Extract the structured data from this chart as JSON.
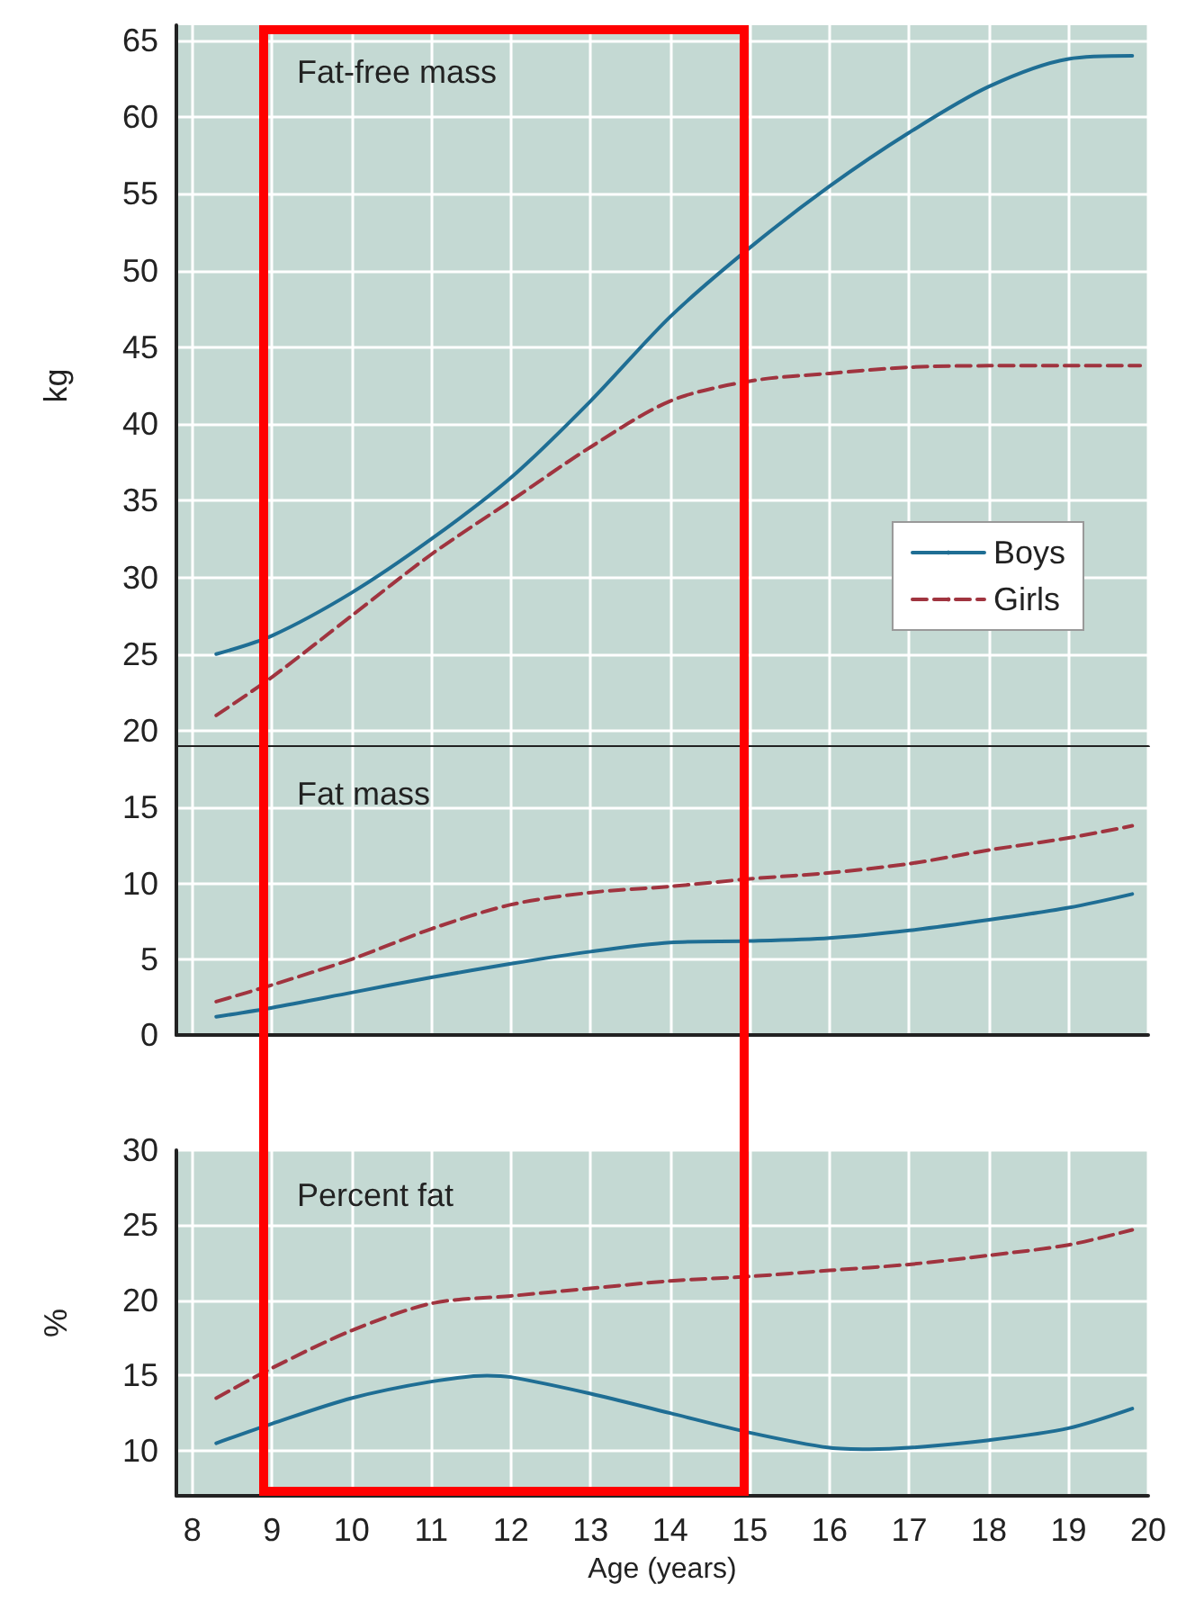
{
  "chart_data": [
    {
      "type": "line",
      "title": "Fat-free mass",
      "ylabel": "kg",
      "xlim": [
        7.8,
        20
      ],
      "xticks": [
        8,
        9,
        10,
        11,
        12,
        13,
        14,
        15,
        16,
        17,
        18,
        19,
        20
      ],
      "ylim": [
        19,
        66
      ],
      "yticks": [
        20,
        25,
        30,
        35,
        40,
        45,
        50,
        55,
        60,
        65
      ],
      "tick_labels": "y",
      "grid": true,
      "legend": "right",
      "marker": "none",
      "series": [
        {
          "name": "Boys",
          "color": "#1f6e94",
          "line_style": "solid",
          "x": [
            8.3,
            9,
            10,
            11,
            12,
            13,
            14,
            15,
            16,
            17,
            18,
            19,
            19.8
          ],
          "values": [
            25,
            26.2,
            29,
            32.5,
            36.5,
            41.5,
            47,
            51.5,
            55.5,
            59,
            62,
            63.8,
            64
          ]
        },
        {
          "name": "Girls",
          "color": "#a0343f",
          "line_style": "dashed",
          "x": [
            8.3,
            9,
            10,
            11,
            12,
            13,
            14,
            15,
            16,
            17,
            18,
            19,
            19.9
          ],
          "values": [
            21,
            23.5,
            27.5,
            31.5,
            35,
            38.5,
            41.5,
            42.8,
            43.3,
            43.7,
            43.8,
            43.8,
            43.8
          ]
        }
      ]
    },
    {
      "type": "line",
      "title": "Fat mass",
      "xlim": [
        7.8,
        20
      ],
      "xticks": [
        8,
        9,
        10,
        11,
        12,
        13,
        14,
        15,
        16,
        17,
        18,
        19,
        20
      ],
      "ylim": [
        0,
        19
      ],
      "yticks": [
        0,
        5,
        10,
        15
      ],
      "tick_labels": "y",
      "grid": true,
      "marker": "none",
      "series": [
        {
          "color": "#1f6e94",
          "line_style": "solid",
          "x": [
            8.3,
            9,
            10,
            11,
            12,
            13,
            14,
            15,
            16,
            17,
            18,
            19,
            19.8
          ],
          "values": [
            1.2,
            1.8,
            2.8,
            3.8,
            4.7,
            5.5,
            6.1,
            6.2,
            6.4,
            6.9,
            7.6,
            8.4,
            9.3
          ]
        },
        {
          "color": "#a0343f",
          "line_style": "dashed",
          "x": [
            8.3,
            9,
            10,
            11,
            12,
            13,
            14,
            15,
            16,
            17,
            18,
            19,
            19.8
          ],
          "values": [
            2.2,
            3.3,
            5,
            7,
            8.6,
            9.4,
            9.8,
            10.3,
            10.7,
            11.3,
            12.2,
            13,
            13.8
          ]
        }
      ]
    },
    {
      "type": "line",
      "title": "Percent fat",
      "xlabel": "Age (years)",
      "ylabel": "%",
      "xlim": [
        7.8,
        20
      ],
      "xticks": [
        8,
        9,
        10,
        11,
        12,
        13,
        14,
        15,
        16,
        17,
        18,
        19,
        20
      ],
      "ylim": [
        7,
        30
      ],
      "yticks": [
        10,
        15,
        20,
        25,
        30
      ],
      "grid": true,
      "marker": "none",
      "series": [
        {
          "color": "#1f6e94",
          "line_style": "solid",
          "x": [
            8.3,
            9,
            10,
            11,
            11.7,
            12,
            13,
            14,
            15,
            16,
            16.5,
            17,
            18,
            19,
            19.8
          ],
          "values": [
            10.5,
            11.8,
            13.5,
            14.6,
            15,
            14.9,
            13.8,
            12.5,
            11.2,
            10.2,
            10.1,
            10.2,
            10.7,
            11.5,
            12.8
          ]
        },
        {
          "color": "#a0343f",
          "line_style": "dashed",
          "x": [
            8.3,
            9,
            10,
            11,
            12,
            13,
            14,
            15,
            16,
            17,
            18,
            19,
            19.8
          ],
          "values": [
            13.5,
            15.5,
            18,
            19.8,
            20.3,
            20.8,
            21.3,
            21.6,
            22,
            22.4,
            23,
            23.7,
            24.7
          ]
        }
      ]
    }
  ]
}
